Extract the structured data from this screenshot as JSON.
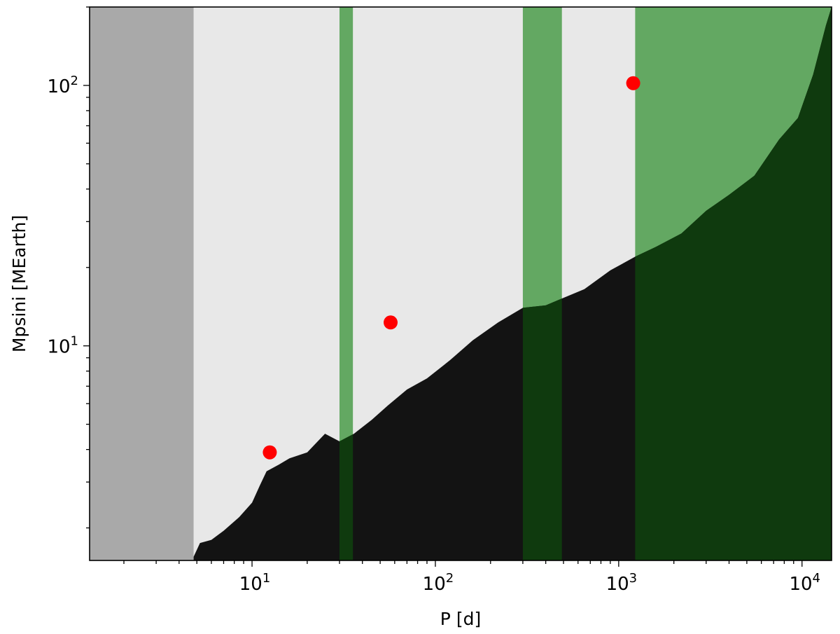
{
  "chart_data": {
    "type": "scatter",
    "title": "",
    "xlabel": "P [d]",
    "ylabel": "Mpsini [MEarth]",
    "xscale": "log",
    "yscale": "log",
    "xlim": [
      1.3,
      14500
    ],
    "ylim": [
      1.5,
      200
    ],
    "grid": false,
    "legend": "none",
    "x_ticks": [
      {
        "value": 10,
        "base": "10",
        "exp": "1"
      },
      {
        "value": 100,
        "base": "10",
        "exp": "2"
      },
      {
        "value": 1000,
        "base": "10",
        "exp": "3"
      },
      {
        "value": 10000,
        "base": "10",
        "exp": "4"
      }
    ],
    "y_ticks": [
      {
        "value": 10,
        "base": "10",
        "exp": "1"
      },
      {
        "value": 100,
        "base": "10",
        "exp": "2"
      }
    ],
    "planets": [
      {
        "P": 12.5,
        "Msini": 3.9
      },
      {
        "P": 57,
        "Msini": 12.3
      },
      {
        "P": 1200,
        "Msini": 102
      }
    ],
    "background_regions": [
      {
        "type": "excluded",
        "P_min": 1.3,
        "P_max": 4.8,
        "color": "#a9a9a9"
      },
      {
        "type": "green",
        "P_min": 30,
        "P_max": 35.5,
        "color": "#63a862"
      },
      {
        "type": "green",
        "P_min": 300,
        "P_max": 490,
        "color": "#63a862"
      },
      {
        "type": "green",
        "P_min": 1230,
        "P_max": 14500,
        "color": "#63a862"
      }
    ],
    "detection_limit": [
      {
        "P": 4.8,
        "M": 1.55
      },
      {
        "P": 5.2,
        "M": 1.75
      },
      {
        "P": 6,
        "M": 1.8
      },
      {
        "P": 7,
        "M": 1.95
      },
      {
        "P": 8.5,
        "M": 2.2
      },
      {
        "P": 10,
        "M": 2.5
      },
      {
        "P": 11,
        "M": 2.9
      },
      {
        "P": 12,
        "M": 3.3
      },
      {
        "P": 14,
        "M": 3.5
      },
      {
        "P": 16,
        "M": 3.7
      },
      {
        "P": 20,
        "M": 3.9
      },
      {
        "P": 25,
        "M": 4.6
      },
      {
        "P": 30,
        "M": 4.3
      },
      {
        "P": 36,
        "M": 4.6
      },
      {
        "P": 45,
        "M": 5.2
      },
      {
        "P": 55,
        "M": 5.9
      },
      {
        "P": 70,
        "M": 6.8
      },
      {
        "P": 90,
        "M": 7.5
      },
      {
        "P": 120,
        "M": 8.8
      },
      {
        "P": 160,
        "M": 10.5
      },
      {
        "P": 220,
        "M": 12.3
      },
      {
        "P": 300,
        "M": 14
      },
      {
        "P": 400,
        "M": 14.3
      },
      {
        "P": 490,
        "M": 15.2
      },
      {
        "P": 650,
        "M": 16.5
      },
      {
        "P": 900,
        "M": 19.5
      },
      {
        "P": 1230,
        "M": 22
      },
      {
        "P": 1600,
        "M": 24
      },
      {
        "P": 2200,
        "M": 27
      },
      {
        "P": 3000,
        "M": 33
      },
      {
        "P": 4000,
        "M": 38
      },
      {
        "P": 5500,
        "M": 45
      },
      {
        "P": 7500,
        "M": 62
      },
      {
        "P": 9500,
        "M": 75
      },
      {
        "P": 11500,
        "M": 110
      },
      {
        "P": 13500,
        "M": 170
      },
      {
        "P": 14500,
        "M": 200
      }
    ],
    "colors": {
      "allowed": "#e8e8e8",
      "excluded": "#a9a9a9",
      "detected": "#131313",
      "green": "#63a862",
      "green_detected": "#0f3a0e",
      "planet": "#ff0000",
      "axis": "#000000"
    }
  }
}
